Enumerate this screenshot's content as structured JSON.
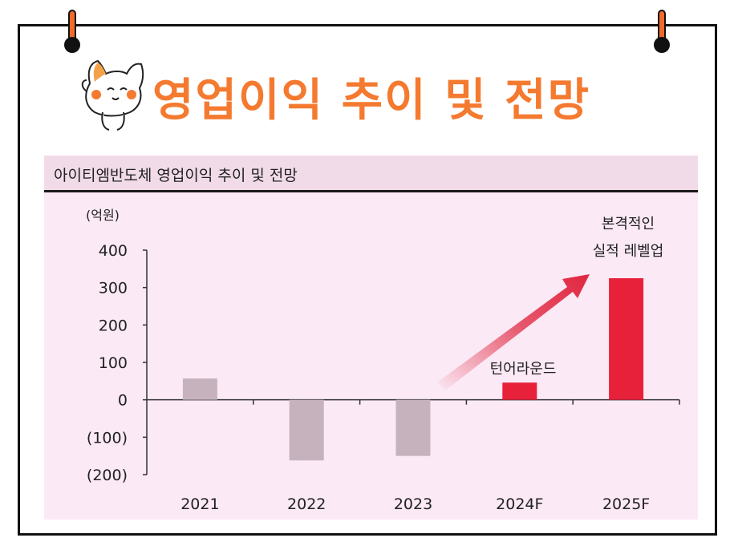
{
  "headline": "영업이익 추이 및 전망",
  "colors": {
    "headline": "#f47a30",
    "pin": "#f26a2a",
    "panel_bg": "#fbe9f5",
    "bar_past": "#c6b2bd",
    "bar_forecast": "#e8213b",
    "arrow": "#e0263f"
  },
  "chart_data": {
    "type": "bar",
    "title": "아이티엠반도체 영업이익 추이 및 전망",
    "unit_label": "(억원)",
    "categories": [
      "2021",
      "2022",
      "2023",
      "2024F",
      "2025F"
    ],
    "values": [
      57,
      -162,
      -150,
      46,
      325
    ],
    "forecast": [
      false,
      false,
      false,
      true,
      true
    ],
    "ylim": [
      -200,
      400
    ],
    "yticks": [
      400,
      300,
      200,
      100,
      0,
      -100,
      -200
    ],
    "ytick_labels": [
      "400",
      "300",
      "200",
      "100",
      "0",
      "(100)",
      "(200)"
    ],
    "annotations": {
      "downturn": "턴어라운드",
      "full_line1": "본격적인",
      "full_line2": "실적 레벨업"
    },
    "grid": false,
    "legend": "none"
  }
}
